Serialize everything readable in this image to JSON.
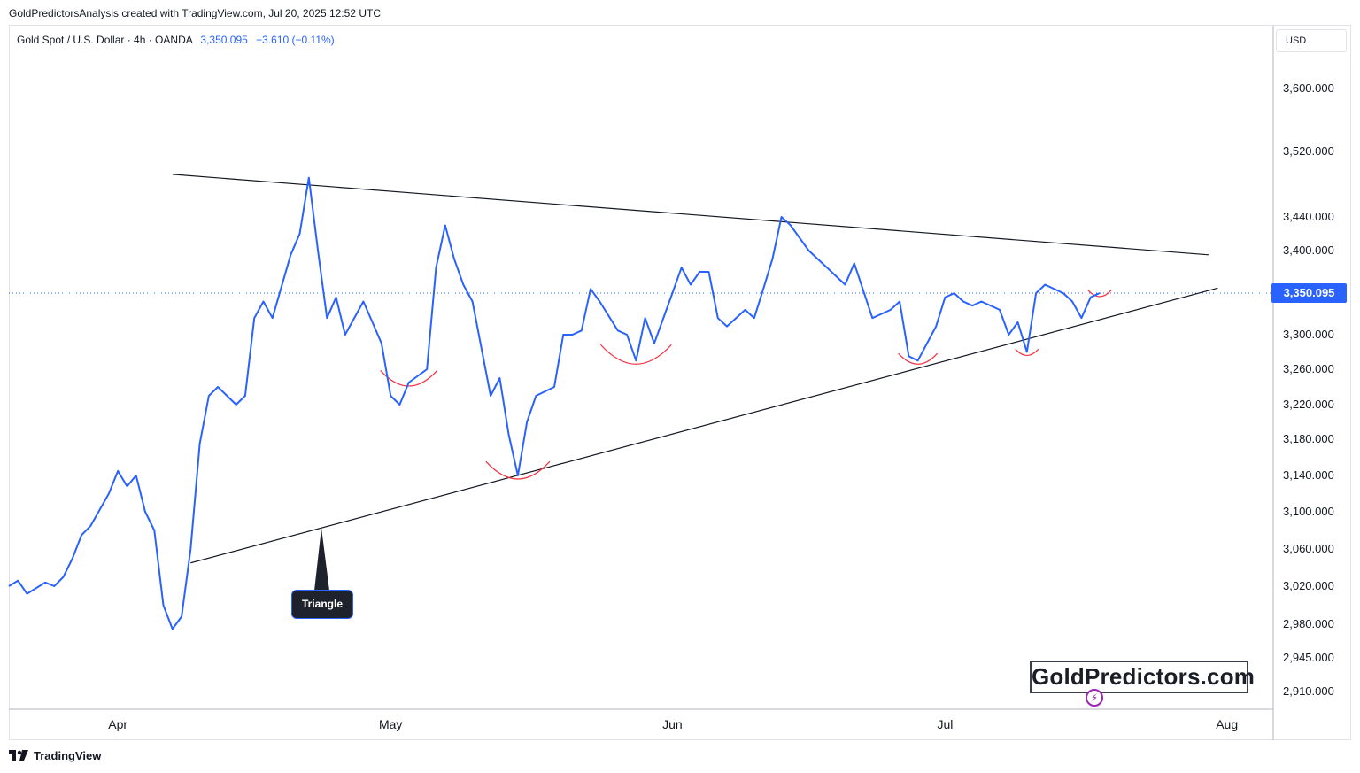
{
  "header": {
    "credit": "GoldPredictorsAnalysis created with TradingView.com, Jul 20, 2025 12:52 UTC"
  },
  "symbol": {
    "title": "Gold Spot / U.S. Dollar · 4h · OANDA",
    "price": "3,350.095",
    "change": "−3.610 (−0.11%)"
  },
  "currency": "USD",
  "footer": {
    "brand": "TradingView"
  },
  "watermark": {
    "text": "GoldPredictors.com"
  },
  "annotation": {
    "label": "Triangle"
  },
  "last_price_label": "3,350.095",
  "colors": {
    "series": "#2962ff",
    "trendline": "#131722",
    "arcs": "#f23645",
    "last_price_line": "#2962ff"
  },
  "chart_data": {
    "type": "line",
    "title": "Gold Spot / U.S. Dollar · 4h · OANDA",
    "xlabel": "",
    "ylabel": "",
    "x_ticks": [
      "Apr",
      "May",
      "Jun",
      "Jul",
      "Aug"
    ],
    "y_ticks": [
      2910,
      2945,
      2980,
      3020,
      3060,
      3100,
      3140,
      3180,
      3220,
      3260,
      3300,
      3350.095,
      3400,
      3440,
      3520,
      3600
    ],
    "y_tick_labels": [
      "2,910.000",
      "2,945.000",
      "2,980.000",
      "3,020.000",
      "3,060.000",
      "3,100.000",
      "3,140.000",
      "3,180.000",
      "3,220.000",
      "3,260.000",
      "3,300.000",
      "3,350.095",
      "3,400.000",
      "3,440.000",
      "3,520.000",
      "3,600.000"
    ],
    "ylim": [
      2895,
      3655
    ],
    "x_range": [
      "2025-03-20",
      "2025-08-06"
    ],
    "grid": false,
    "last_price": 3350.095,
    "series": [
      {
        "name": "Gold Spot / U.S. Dollar",
        "points": [
          [
            "2025-03-20",
            3020
          ],
          [
            "2025-03-21",
            3026
          ],
          [
            "2025-03-22",
            3012
          ],
          [
            "2025-03-24",
            3024
          ],
          [
            "2025-03-25",
            3020
          ],
          [
            "2025-03-26",
            3030
          ],
          [
            "2025-03-27",
            3050
          ],
          [
            "2025-03-28",
            3075
          ],
          [
            "2025-03-29",
            3085
          ],
          [
            "2025-03-31",
            3120
          ],
          [
            "2025-04-01",
            3145
          ],
          [
            "2025-04-02",
            3128
          ],
          [
            "2025-04-03",
            3140
          ],
          [
            "2025-04-04",
            3100
          ],
          [
            "2025-04-05",
            3080
          ],
          [
            "2025-04-06",
            3000
          ],
          [
            "2025-04-07",
            2975
          ],
          [
            "2025-04-08",
            2988
          ],
          [
            "2025-04-09",
            3060
          ],
          [
            "2025-04-10",
            3175
          ],
          [
            "2025-04-11",
            3230
          ],
          [
            "2025-04-12",
            3240
          ],
          [
            "2025-04-14",
            3220
          ],
          [
            "2025-04-15",
            3230
          ],
          [
            "2025-04-16",
            3320
          ],
          [
            "2025-04-17",
            3340
          ],
          [
            "2025-04-18",
            3320
          ],
          [
            "2025-04-20",
            3395
          ],
          [
            "2025-04-21",
            3420
          ],
          [
            "2025-04-22",
            3488
          ],
          [
            "2025-04-23",
            3400
          ],
          [
            "2025-04-24",
            3320
          ],
          [
            "2025-04-25",
            3345
          ],
          [
            "2025-04-26",
            3300
          ],
          [
            "2025-04-28",
            3340
          ],
          [
            "2025-04-29",
            3315
          ],
          [
            "2025-04-30",
            3290
          ],
          [
            "2025-05-01",
            3230
          ],
          [
            "2025-05-02",
            3220
          ],
          [
            "2025-05-03",
            3245
          ],
          [
            "2025-05-05",
            3260
          ],
          [
            "2025-05-06",
            3380
          ],
          [
            "2025-05-07",
            3430
          ],
          [
            "2025-05-08",
            3390
          ],
          [
            "2025-05-09",
            3360
          ],
          [
            "2025-05-10",
            3340
          ],
          [
            "2025-05-12",
            3230
          ],
          [
            "2025-05-13",
            3250
          ],
          [
            "2025-05-14",
            3185
          ],
          [
            "2025-05-15",
            3140
          ],
          [
            "2025-05-16",
            3200
          ],
          [
            "2025-05-17",
            3230
          ],
          [
            "2025-05-19",
            3240
          ],
          [
            "2025-05-20",
            3300
          ],
          [
            "2025-05-21",
            3300
          ],
          [
            "2025-05-22",
            3305
          ],
          [
            "2025-05-23",
            3355
          ],
          [
            "2025-05-24",
            3340
          ],
          [
            "2025-05-26",
            3305
          ],
          [
            "2025-05-27",
            3300
          ],
          [
            "2025-05-28",
            3270
          ],
          [
            "2025-05-29",
            3320
          ],
          [
            "2025-05-30",
            3290
          ],
          [
            "2025-06-01",
            3350
          ],
          [
            "2025-06-02",
            3380
          ],
          [
            "2025-06-03",
            3360
          ],
          [
            "2025-06-04",
            3375
          ],
          [
            "2025-06-05",
            3375
          ],
          [
            "2025-06-06",
            3320
          ],
          [
            "2025-06-07",
            3310
          ],
          [
            "2025-06-09",
            3330
          ],
          [
            "2025-06-10",
            3320
          ],
          [
            "2025-06-11",
            3355
          ],
          [
            "2025-06-12",
            3390
          ],
          [
            "2025-06-13",
            3440
          ],
          [
            "2025-06-14",
            3430
          ],
          [
            "2025-06-16",
            3400
          ],
          [
            "2025-06-17",
            3390
          ],
          [
            "2025-06-18",
            3380
          ],
          [
            "2025-06-19",
            3370
          ],
          [
            "2025-06-20",
            3360
          ],
          [
            "2025-06-21",
            3385
          ],
          [
            "2025-06-23",
            3320
          ],
          [
            "2025-06-24",
            3325
          ],
          [
            "2025-06-25",
            3330
          ],
          [
            "2025-06-26",
            3340
          ],
          [
            "2025-06-27",
            3275
          ],
          [
            "2025-06-28",
            3270
          ],
          [
            "2025-06-30",
            3310
          ],
          [
            "2025-07-01",
            3345
          ],
          [
            "2025-07-02",
            3350
          ],
          [
            "2025-07-03",
            3340
          ],
          [
            "2025-07-04",
            3335
          ],
          [
            "2025-07-05",
            3340
          ],
          [
            "2025-07-07",
            3330
          ],
          [
            "2025-07-08",
            3300
          ],
          [
            "2025-07-09",
            3315
          ],
          [
            "2025-07-10",
            3280
          ],
          [
            "2025-07-11",
            3350
          ],
          [
            "2025-07-12",
            3360
          ],
          [
            "2025-07-14",
            3350
          ],
          [
            "2025-07-15",
            3340
          ],
          [
            "2025-07-16",
            3320
          ],
          [
            "2025-07-17",
            3345
          ],
          [
            "2025-07-18",
            3350.095
          ]
        ]
      }
    ],
    "trendlines": [
      {
        "name": "upper",
        "from": [
          "2025-04-07",
          3492
        ],
        "to": [
          "2025-07-30",
          3395
        ]
      },
      {
        "name": "lower",
        "from": [
          "2025-04-09",
          3045
        ],
        "to": [
          "2025-07-31",
          3356
        ]
      }
    ],
    "bottom_arcs": [
      "2025-05-03",
      "2025-05-15",
      "2025-05-28",
      "2025-06-28",
      "2025-07-10",
      "2025-07-18"
    ],
    "annotations": [
      "Triangle"
    ]
  }
}
